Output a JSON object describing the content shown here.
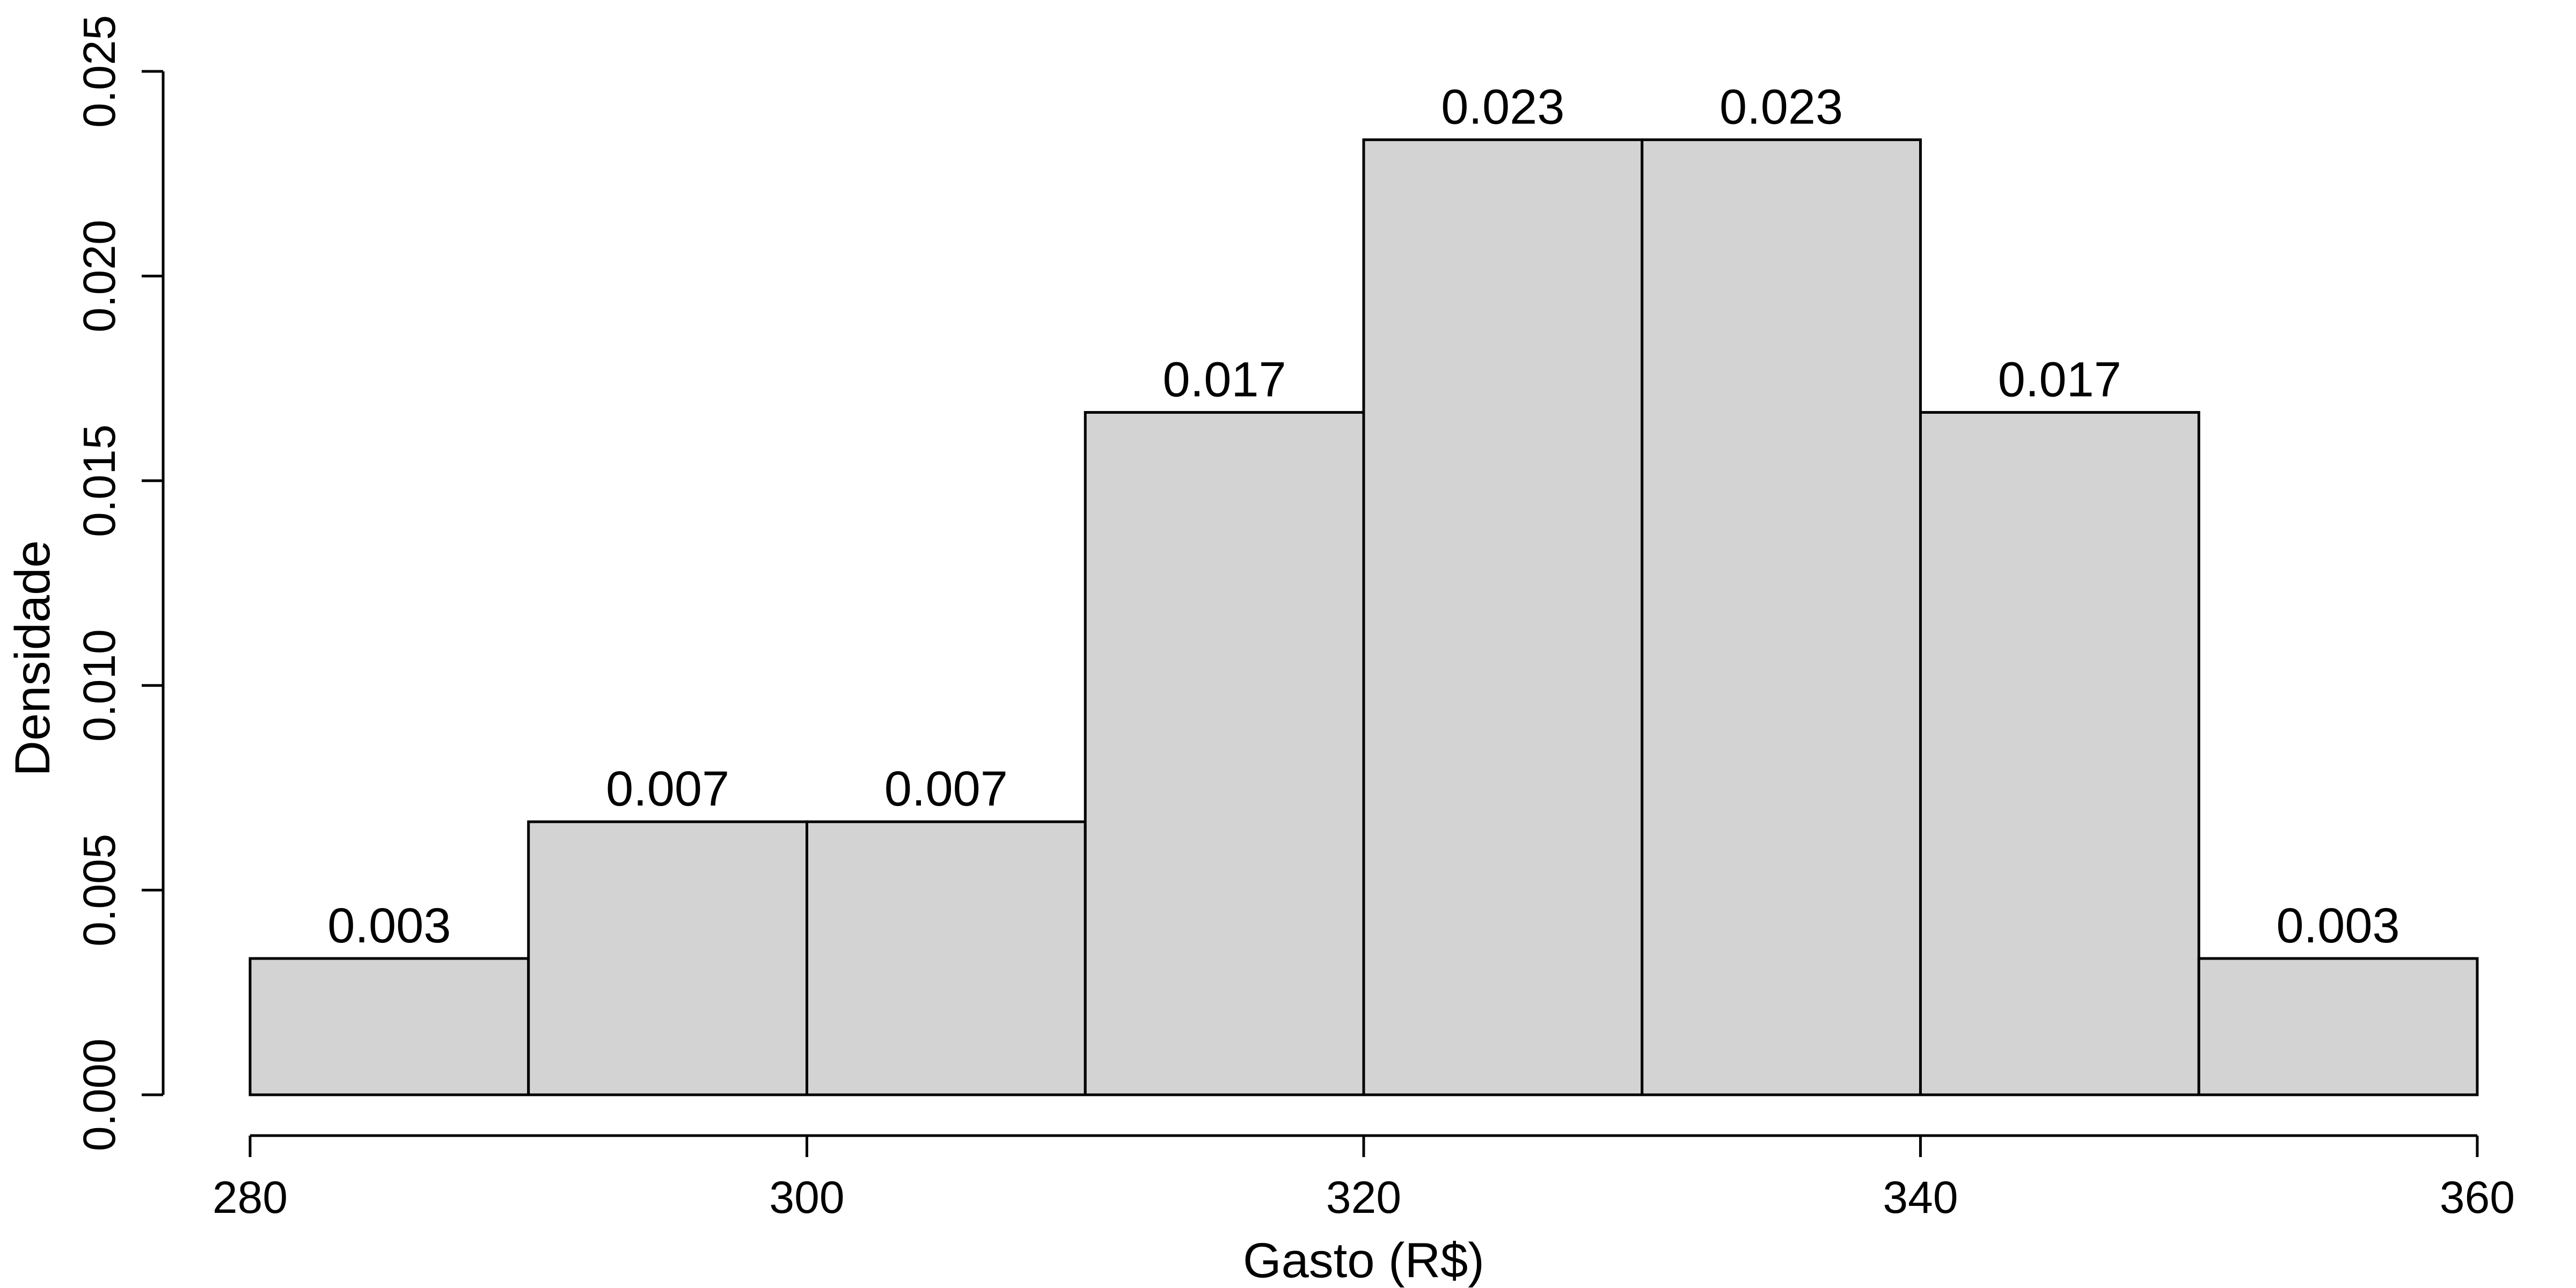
{
  "chart_data": {
    "type": "bar",
    "subtype": "histogram",
    "title": "",
    "xlabel": "Gasto (R$)",
    "ylabel": "Densidade",
    "bins": [
      [
        280,
        290
      ],
      [
        290,
        300
      ],
      [
        300,
        310
      ],
      [
        310,
        320
      ],
      [
        320,
        330
      ],
      [
        330,
        340
      ],
      [
        340,
        350
      ],
      [
        350,
        360
      ]
    ],
    "values": [
      0.00333,
      0.00667,
      0.00667,
      0.01667,
      0.02333,
      0.02333,
      0.01667,
      0.00333
    ],
    "value_labels": [
      "0.003",
      "0.007",
      "0.007",
      "0.017",
      "0.023",
      "0.023",
      "0.017",
      "0.003"
    ],
    "xlim": [
      280,
      360
    ],
    "ylim": [
      0,
      0.025
    ],
    "x_ticks": [
      280,
      300,
      320,
      340,
      360
    ],
    "x_tick_labels": [
      "280",
      "300",
      "320",
      "340",
      "360"
    ],
    "y_ticks": [
      0,
      0.005,
      0.01,
      0.015,
      0.02,
      0.025
    ],
    "y_tick_labels": [
      "0.000",
      "0.005",
      "0.010",
      "0.015",
      "0.020",
      "0.025"
    ],
    "grid": false,
    "bar_color": "#d3d3d3",
    "edge_color": "#000000"
  }
}
